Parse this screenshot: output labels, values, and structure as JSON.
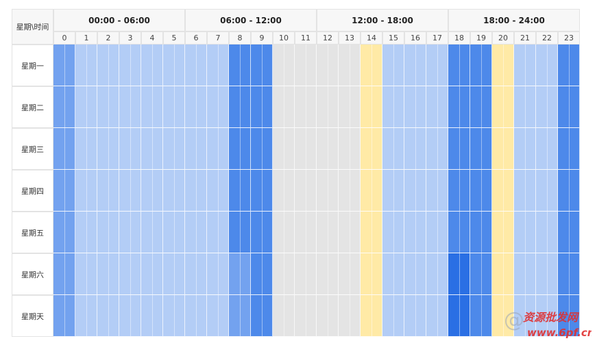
{
  "corner_label": "星期\\时间",
  "ranges": [
    "00:00 - 06:00",
    "06:00 - 12:00",
    "12:00 - 18:00",
    "18:00 - 24:00"
  ],
  "hours": [
    "0",
    "1",
    "2",
    "3",
    "4",
    "5",
    "6",
    "7",
    "8",
    "9",
    "10",
    "11",
    "12",
    "13",
    "14",
    "15",
    "16",
    "17",
    "18",
    "19",
    "20",
    "21",
    "22",
    "23"
  ],
  "days": [
    "星期一",
    "星期二",
    "星期三",
    "星期四",
    "星期五",
    "星期六",
    "星期天"
  ],
  "level_colors": {
    "L": "#b3cdf6",
    "M": "#73a2ef",
    "H": "#4d89ea",
    "X": "#2a6fe4",
    "G": "#e4e4e4",
    "Y": "#ffeaa6"
  },
  "cells": [
    [
      "M",
      "L",
      "L",
      "L",
      "L",
      "L",
      "L",
      "L",
      "H",
      "H",
      "G",
      "G",
      "G",
      "G",
      "Y",
      "L",
      "L",
      "L",
      "H",
      "H",
      "Y",
      "L",
      "L",
      "H"
    ],
    [
      "M",
      "L",
      "L",
      "L",
      "L",
      "L",
      "L",
      "L",
      "H",
      "H",
      "G",
      "G",
      "G",
      "G",
      "Y",
      "L",
      "L",
      "L",
      "H",
      "H",
      "Y",
      "L",
      "L",
      "H"
    ],
    [
      "M",
      "L",
      "L",
      "L",
      "L",
      "L",
      "L",
      "L",
      "H",
      "H",
      "G",
      "G",
      "G",
      "G",
      "Y",
      "L",
      "L",
      "L",
      "H",
      "H",
      "Y",
      "L",
      "L",
      "H"
    ],
    [
      "M",
      "L",
      "L",
      "L",
      "L",
      "L",
      "L",
      "L",
      "H",
      "H",
      "G",
      "G",
      "G",
      "G",
      "Y",
      "L",
      "L",
      "L",
      "H",
      "H",
      "Y",
      "L",
      "L",
      "H"
    ],
    [
      "M",
      "L",
      "L",
      "L",
      "L",
      "L",
      "L",
      "L",
      "H",
      "H",
      "G",
      "G",
      "G",
      "G",
      "Y",
      "L",
      "L",
      "L",
      "H",
      "H",
      "Y",
      "L",
      "L",
      "H"
    ],
    [
      "M",
      "L",
      "L",
      "L",
      "L",
      "L",
      "L",
      "L",
      "M",
      "H",
      "G",
      "G",
      "G",
      "G",
      "Y",
      "L",
      "L",
      "L",
      "X",
      "H",
      "Y",
      "L",
      "L",
      "H"
    ],
    [
      "M",
      "L",
      "L",
      "L",
      "L",
      "L",
      "L",
      "L",
      "M",
      "H",
      "G",
      "G",
      "G",
      "G",
      "Y",
      "L",
      "L",
      "L",
      "X",
      "H",
      "Y",
      "L",
      "L",
      "H"
    ]
  ],
  "watermark": {
    "text": "资源批发网",
    "url": "www.6pf.cn",
    "color": "#e03030"
  }
}
